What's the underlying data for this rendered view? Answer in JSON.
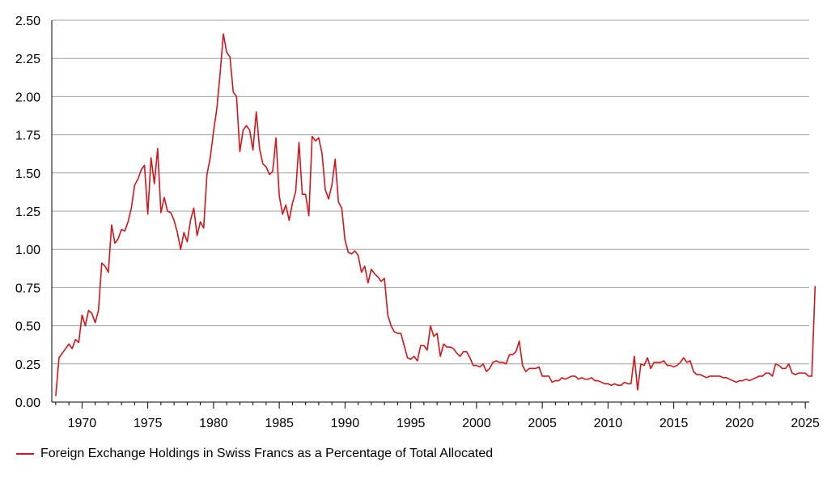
{
  "chart_data": {
    "type": "line",
    "title": "",
    "xlabel": "",
    "ylabel": "",
    "xlim": [
      1967.7,
      2025.3
    ],
    "ylim": [
      0,
      2.5
    ],
    "y_ticks": [
      "0.00",
      "0.25",
      "0.50",
      "0.75",
      "1.00",
      "1.25",
      "1.50",
      "1.75",
      "2.00",
      "2.25",
      "2.50"
    ],
    "x_ticks": [
      "1970",
      "1975",
      "1980",
      "1985",
      "1990",
      "1995",
      "2000",
      "2005",
      "2010",
      "2015",
      "2020",
      "2025"
    ],
    "grid": "horizontal",
    "legend_position": "bottom-left",
    "colors": {
      "series": "#d7141a",
      "grid": "#a0a0a0",
      "axis": "#000000"
    },
    "series": [
      {
        "name": "Foreign Exchange Holdings in Swiss Francs as a Percentage of Total Allocated",
        "points": [
          [
            1968.0,
            0.04
          ],
          [
            1968.25,
            0.29
          ],
          [
            1968.5,
            0.32
          ],
          [
            1968.75,
            0.35
          ],
          [
            1969.0,
            0.38
          ],
          [
            1969.25,
            0.35
          ],
          [
            1969.5,
            0.41
          ],
          [
            1969.75,
            0.39
          ],
          [
            1970.0,
            0.57
          ],
          [
            1970.25,
            0.5
          ],
          [
            1970.5,
            0.6
          ],
          [
            1970.75,
            0.58
          ],
          [
            1971.0,
            0.52
          ],
          [
            1971.25,
            0.6
          ],
          [
            1971.5,
            0.91
          ],
          [
            1971.75,
            0.89
          ],
          [
            1972.0,
            0.85
          ],
          [
            1972.25,
            1.16
          ],
          [
            1972.5,
            1.04
          ],
          [
            1972.75,
            1.07
          ],
          [
            1973.0,
            1.13
          ],
          [
            1973.25,
            1.12
          ],
          [
            1973.5,
            1.18
          ],
          [
            1973.75,
            1.27
          ],
          [
            1974.0,
            1.42
          ],
          [
            1974.25,
            1.46
          ],
          [
            1974.5,
            1.52
          ],
          [
            1974.75,
            1.55
          ],
          [
            1975.0,
            1.23
          ],
          [
            1975.25,
            1.6
          ],
          [
            1975.5,
            1.43
          ],
          [
            1975.75,
            1.66
          ],
          [
            1976.0,
            1.24
          ],
          [
            1976.25,
            1.34
          ],
          [
            1976.5,
            1.25
          ],
          [
            1976.75,
            1.24
          ],
          [
            1977.0,
            1.19
          ],
          [
            1977.25,
            1.11
          ],
          [
            1977.5,
            1.0
          ],
          [
            1977.75,
            1.11
          ],
          [
            1978.0,
            1.05
          ],
          [
            1978.25,
            1.19
          ],
          [
            1978.5,
            1.27
          ],
          [
            1978.75,
            1.09
          ],
          [
            1979.0,
            1.18
          ],
          [
            1979.25,
            1.14
          ],
          [
            1979.5,
            1.49
          ],
          [
            1979.75,
            1.6
          ],
          [
            1980.0,
            1.77
          ],
          [
            1980.25,
            1.92
          ],
          [
            1980.5,
            2.15
          ],
          [
            1980.75,
            2.41
          ],
          [
            1981.0,
            2.29
          ],
          [
            1981.25,
            2.26
          ],
          [
            1981.5,
            2.03
          ],
          [
            1981.75,
            2.0
          ],
          [
            1982.0,
            1.64
          ],
          [
            1982.25,
            1.78
          ],
          [
            1982.5,
            1.81
          ],
          [
            1982.75,
            1.78
          ],
          [
            1983.0,
            1.65
          ],
          [
            1983.25,
            1.9
          ],
          [
            1983.5,
            1.66
          ],
          [
            1983.75,
            1.56
          ],
          [
            1984.0,
            1.54
          ],
          [
            1984.25,
            1.49
          ],
          [
            1984.5,
            1.51
          ],
          [
            1984.75,
            1.73
          ],
          [
            1985.0,
            1.35
          ],
          [
            1985.25,
            1.23
          ],
          [
            1985.5,
            1.29
          ],
          [
            1985.75,
            1.19
          ],
          [
            1986.0,
            1.3
          ],
          [
            1986.25,
            1.38
          ],
          [
            1986.5,
            1.7
          ],
          [
            1986.75,
            1.36
          ],
          [
            1987.0,
            1.36
          ],
          [
            1987.25,
            1.22
          ],
          [
            1987.5,
            1.74
          ],
          [
            1987.75,
            1.71
          ],
          [
            1988.0,
            1.73
          ],
          [
            1988.25,
            1.63
          ],
          [
            1988.5,
            1.39
          ],
          [
            1988.75,
            1.33
          ],
          [
            1989.0,
            1.42
          ],
          [
            1989.25,
            1.59
          ],
          [
            1989.5,
            1.31
          ],
          [
            1989.75,
            1.27
          ],
          [
            1990.0,
            1.06
          ],
          [
            1990.25,
            0.98
          ],
          [
            1990.5,
            0.97
          ],
          [
            1990.75,
            0.99
          ],
          [
            1991.0,
            0.96
          ],
          [
            1991.25,
            0.85
          ],
          [
            1991.5,
            0.89
          ],
          [
            1991.75,
            0.78
          ],
          [
            1992.0,
            0.87
          ],
          [
            1992.25,
            0.84
          ],
          [
            1992.5,
            0.82
          ],
          [
            1992.75,
            0.79
          ],
          [
            1993.0,
            0.81
          ],
          [
            1993.25,
            0.57
          ],
          [
            1993.5,
            0.5
          ],
          [
            1993.75,
            0.46
          ],
          [
            1994.0,
            0.45
          ],
          [
            1994.25,
            0.45
          ],
          [
            1994.5,
            0.37
          ],
          [
            1994.75,
            0.29
          ],
          [
            1995.0,
            0.28
          ],
          [
            1995.25,
            0.3
          ],
          [
            1995.5,
            0.27
          ],
          [
            1995.75,
            0.37
          ],
          [
            1996.0,
            0.37
          ],
          [
            1996.25,
            0.34
          ],
          [
            1996.5,
            0.5
          ],
          [
            1996.75,
            0.43
          ],
          [
            1997.0,
            0.45
          ],
          [
            1997.25,
            0.3
          ],
          [
            1997.5,
            0.38
          ],
          [
            1997.75,
            0.36
          ],
          [
            1998.0,
            0.36
          ],
          [
            1998.25,
            0.35
          ],
          [
            1998.5,
            0.32
          ],
          [
            1998.75,
            0.3
          ],
          [
            1999.0,
            0.33
          ],
          [
            1999.25,
            0.33
          ],
          [
            1999.5,
            0.29
          ],
          [
            1999.75,
            0.24
          ],
          [
            2000.0,
            0.24
          ],
          [
            2000.25,
            0.23
          ],
          [
            2000.5,
            0.25
          ],
          [
            2000.75,
            0.2
          ],
          [
            2001.0,
            0.22
          ],
          [
            2001.25,
            0.26
          ],
          [
            2001.5,
            0.27
          ],
          [
            2001.75,
            0.26
          ],
          [
            2002.0,
            0.26
          ],
          [
            2002.25,
            0.25
          ],
          [
            2002.5,
            0.31
          ],
          [
            2002.75,
            0.31
          ],
          [
            2003.0,
            0.33
          ],
          [
            2003.25,
            0.4
          ],
          [
            2003.5,
            0.24
          ],
          [
            2003.75,
            0.2
          ],
          [
            2004.0,
            0.22
          ],
          [
            2004.25,
            0.22
          ],
          [
            2004.5,
            0.22
          ],
          [
            2004.75,
            0.23
          ],
          [
            2005.0,
            0.17
          ],
          [
            2005.25,
            0.17
          ],
          [
            2005.5,
            0.17
          ],
          [
            2005.75,
            0.13
          ],
          [
            2006.0,
            0.14
          ],
          [
            2006.25,
            0.14
          ],
          [
            2006.5,
            0.16
          ],
          [
            2006.75,
            0.15
          ],
          [
            2007.0,
            0.16
          ],
          [
            2007.25,
            0.17
          ],
          [
            2007.5,
            0.17
          ],
          [
            2007.75,
            0.15
          ],
          [
            2008.0,
            0.16
          ],
          [
            2008.25,
            0.15
          ],
          [
            2008.5,
            0.15
          ],
          [
            2008.75,
            0.16
          ],
          [
            2009.0,
            0.14
          ],
          [
            2009.25,
            0.14
          ],
          [
            2009.5,
            0.13
          ],
          [
            2009.75,
            0.12
          ],
          [
            2010.0,
            0.12
          ],
          [
            2010.25,
            0.11
          ],
          [
            2010.5,
            0.12
          ],
          [
            2010.75,
            0.11
          ],
          [
            2011.0,
            0.11
          ],
          [
            2011.25,
            0.13
          ],
          [
            2011.5,
            0.12
          ],
          [
            2011.75,
            0.12
          ],
          [
            2012.0,
            0.3
          ],
          [
            2012.25,
            0.08
          ],
          [
            2012.5,
            0.25
          ],
          [
            2012.75,
            0.24
          ],
          [
            2013.0,
            0.29
          ],
          [
            2013.25,
            0.22
          ],
          [
            2013.5,
            0.26
          ],
          [
            2013.75,
            0.26
          ],
          [
            2014.0,
            0.26
          ],
          [
            2014.25,
            0.27
          ],
          [
            2014.5,
            0.24
          ],
          [
            2014.75,
            0.24
          ],
          [
            2015.0,
            0.23
          ],
          [
            2015.25,
            0.24
          ],
          [
            2015.5,
            0.26
          ],
          [
            2015.75,
            0.29
          ],
          [
            2016.0,
            0.26
          ],
          [
            2016.25,
            0.27
          ],
          [
            2016.5,
            0.2
          ],
          [
            2016.75,
            0.18
          ],
          [
            2017.0,
            0.18
          ],
          [
            2017.25,
            0.17
          ],
          [
            2017.5,
            0.16
          ],
          [
            2017.75,
            0.17
          ],
          [
            2018.0,
            0.17
          ],
          [
            2018.25,
            0.17
          ],
          [
            2018.5,
            0.17
          ],
          [
            2018.75,
            0.16
          ],
          [
            2019.0,
            0.16
          ],
          [
            2019.25,
            0.15
          ],
          [
            2019.5,
            0.14
          ],
          [
            2019.75,
            0.13
          ],
          [
            2020.0,
            0.14
          ],
          [
            2020.25,
            0.14
          ],
          [
            2020.5,
            0.15
          ],
          [
            2020.75,
            0.14
          ],
          [
            2021.0,
            0.15
          ],
          [
            2021.25,
            0.16
          ],
          [
            2021.5,
            0.17
          ],
          [
            2021.75,
            0.17
          ],
          [
            2022.0,
            0.19
          ],
          [
            2022.25,
            0.19
          ],
          [
            2022.5,
            0.17
          ],
          [
            2022.75,
            0.25
          ],
          [
            2023.0,
            0.24
          ],
          [
            2023.25,
            0.22
          ],
          [
            2023.5,
            0.22
          ],
          [
            2023.75,
            0.25
          ],
          [
            2024.0,
            0.19
          ],
          [
            2024.25,
            0.18
          ],
          [
            2024.5,
            0.19
          ],
          [
            2024.75,
            0.19
          ],
          [
            2025.0,
            0.19
          ],
          [
            2025.25,
            0.17
          ],
          [
            2025.5,
            0.17
          ],
          [
            2025.75,
            0.76
          ]
        ]
      }
    ]
  }
}
